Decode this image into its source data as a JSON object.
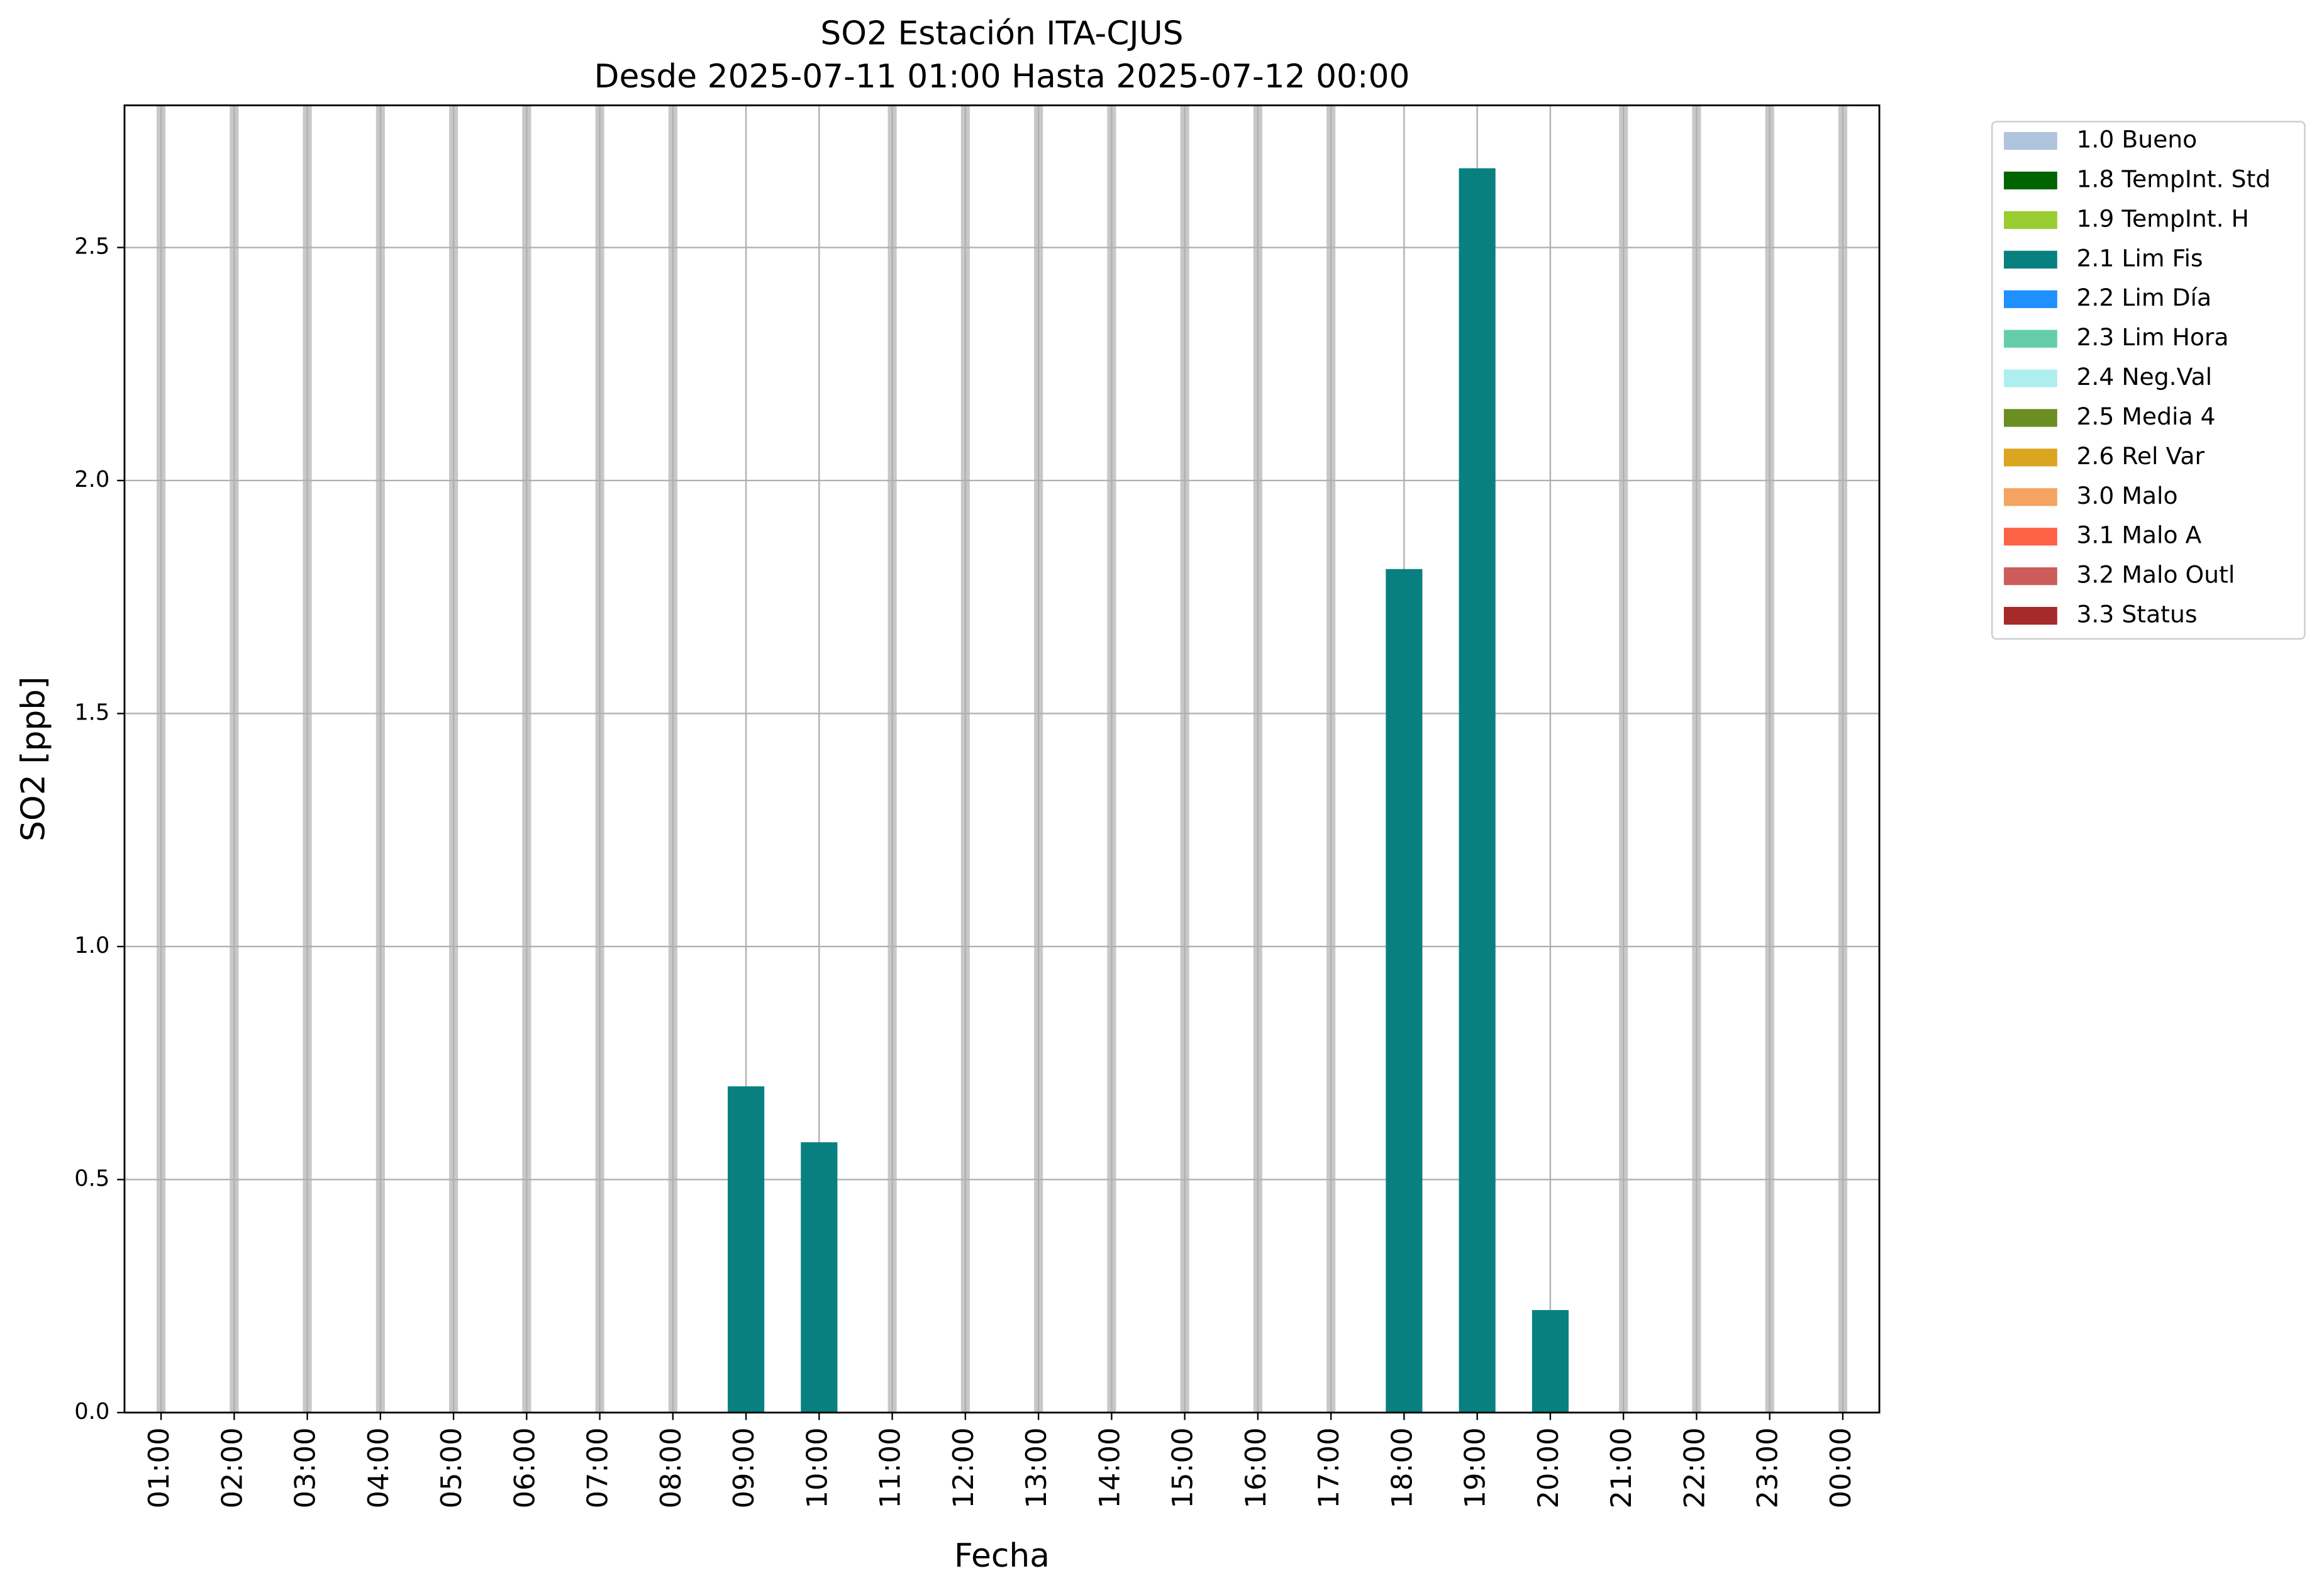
{
  "chart_data": {
    "type": "bar",
    "title": "SO2 Estación ITA-CJUS",
    "subtitle": "Desde 2025-07-11 01:00 Hasta 2025-07-12 00:00",
    "x_label": "Fecha",
    "y_label": "SO2 [ppb]",
    "categories": [
      "01:00",
      "02:00",
      "03:00",
      "04:00",
      "05:00",
      "06:00",
      "07:00",
      "08:00",
      "09:00",
      "10:00",
      "11:00",
      "12:00",
      "13:00",
      "14:00",
      "15:00",
      "16:00",
      "17:00",
      "18:00",
      "19:00",
      "20:00",
      "21:00",
      "22:00",
      "23:00",
      "00:00"
    ],
    "series": [
      {
        "name": "1.0 Bueno",
        "color": "#b0c4de",
        "values": [
          null,
          null,
          null,
          null,
          null,
          null,
          null,
          null,
          null,
          null,
          null,
          null,
          null,
          null,
          null,
          null,
          null,
          null,
          null,
          null,
          null,
          null,
          null,
          null
        ]
      },
      {
        "name": "1.8 TempInt. Std",
        "color": "#006400",
        "values": [
          null,
          null,
          null,
          null,
          null,
          null,
          null,
          null,
          null,
          null,
          null,
          null,
          null,
          null,
          null,
          null,
          null,
          null,
          null,
          null,
          null,
          null,
          null,
          null
        ]
      },
      {
        "name": "1.9 TempInt. H",
        "color": "#9acd32",
        "values": [
          null,
          null,
          null,
          null,
          null,
          null,
          null,
          null,
          null,
          null,
          null,
          null,
          null,
          null,
          null,
          null,
          null,
          null,
          null,
          null,
          null,
          null,
          null,
          null
        ]
      },
      {
        "name": "2.1 Lim Fis",
        "color": "#088080",
        "values": [
          null,
          null,
          null,
          null,
          null,
          null,
          null,
          null,
          0.7,
          0.58,
          null,
          null,
          null,
          null,
          null,
          null,
          null,
          1.81,
          2.67,
          0.22,
          null,
          null,
          null,
          null
        ]
      },
      {
        "name": "2.2 Lim Día",
        "color": "#1e90ff",
        "values": [
          null,
          null,
          null,
          null,
          null,
          null,
          null,
          null,
          null,
          null,
          null,
          null,
          null,
          null,
          null,
          null,
          null,
          null,
          null,
          null,
          null,
          null,
          null,
          null
        ]
      },
      {
        "name": "2.3 Lim Hora",
        "color": "#66cdaa",
        "values": [
          null,
          null,
          null,
          null,
          null,
          null,
          null,
          null,
          null,
          null,
          null,
          null,
          null,
          null,
          null,
          null,
          null,
          null,
          null,
          null,
          null,
          null,
          null,
          null
        ]
      },
      {
        "name": "2.4 Neg.Val",
        "color": "#afeeee",
        "values": [
          null,
          null,
          null,
          null,
          null,
          null,
          null,
          null,
          null,
          null,
          null,
          null,
          null,
          null,
          null,
          null,
          null,
          null,
          null,
          null,
          null,
          null,
          null,
          null
        ]
      },
      {
        "name": "2.5 Media 4",
        "color": "#6b8e23",
        "values": [
          null,
          null,
          null,
          null,
          null,
          null,
          null,
          null,
          null,
          null,
          null,
          null,
          null,
          null,
          null,
          null,
          null,
          null,
          null,
          null,
          null,
          null,
          null,
          null
        ]
      },
      {
        "name": "2.6 Rel Var",
        "color": "#daa520",
        "values": [
          null,
          null,
          null,
          null,
          null,
          null,
          null,
          null,
          null,
          null,
          null,
          null,
          null,
          null,
          null,
          null,
          null,
          null,
          null,
          null,
          null,
          null,
          null,
          null
        ]
      },
      {
        "name": "3.0 Malo",
        "color": "#f4a460",
        "values": [
          null,
          null,
          null,
          null,
          null,
          null,
          null,
          null,
          null,
          null,
          null,
          null,
          null,
          null,
          null,
          null,
          null,
          null,
          null,
          null,
          null,
          null,
          null,
          null
        ]
      },
      {
        "name": "3.1 Malo A",
        "color": "#ff6347",
        "values": [
          null,
          null,
          null,
          null,
          null,
          null,
          null,
          null,
          null,
          null,
          null,
          null,
          null,
          null,
          null,
          null,
          null,
          null,
          null,
          null,
          null,
          null,
          null,
          null
        ]
      },
      {
        "name": "3.2 Malo Outl",
        "color": "#cd5c5c",
        "values": [
          null,
          null,
          null,
          null,
          null,
          null,
          null,
          null,
          null,
          null,
          null,
          null,
          null,
          null,
          null,
          null,
          null,
          null,
          null,
          null,
          null,
          null,
          null,
          null
        ]
      },
      {
        "name": "3.3 Status",
        "color": "#a52a2a",
        "values": [
          null,
          null,
          null,
          null,
          null,
          null,
          null,
          null,
          null,
          null,
          null,
          null,
          null,
          null,
          null,
          null,
          null,
          null,
          null,
          null,
          null,
          null,
          null,
          null
        ]
      }
    ],
    "ylim": [
      0,
      2.805
    ],
    "yticks": [
      {
        "value": 0,
        "label": "0.0"
      },
      0.5,
      {
        "value": 1,
        "label": "1.0"
      },
      1.5,
      {
        "value": 2,
        "label": "2.0"
      },
      2.5
    ],
    "grid": true,
    "legend": "outside upper right"
  }
}
